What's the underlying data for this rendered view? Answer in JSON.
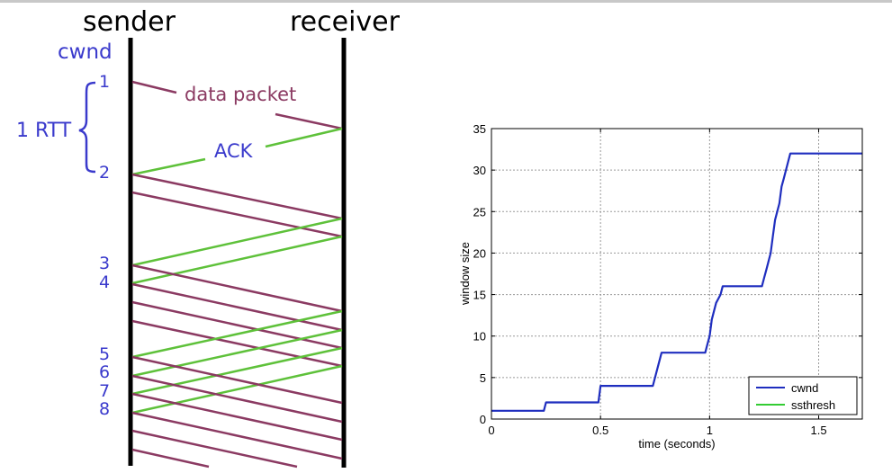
{
  "diagram": {
    "sender_label": "sender",
    "receiver_label": "receiver",
    "cwnd_label": "cwnd",
    "rtt_label": "1 RTT",
    "data_packet_label": "data packet",
    "ack_label": "ACK",
    "window_numbers": [
      "1",
      "2",
      "3",
      "4",
      "5",
      "6",
      "7",
      "8"
    ],
    "colors": {
      "data": "#8b3a62",
      "ack": "#5ec13a",
      "labels": "#3a3acc",
      "lines": "#000000"
    }
  },
  "chart_data": {
    "type": "line",
    "title": "",
    "xlabel": "time (seconds)",
    "ylabel": "window size",
    "xlim": [
      0,
      1.7
    ],
    "ylim": [
      0,
      35
    ],
    "xticks": [
      0,
      0.5,
      1,
      1.5
    ],
    "xtick_labels": [
      "0",
      "0.5",
      "1",
      "1.5"
    ],
    "yticks": [
      0,
      5,
      10,
      15,
      20,
      25,
      30,
      35
    ],
    "ytick_labels": [
      "0",
      "5",
      "10",
      "15",
      "20",
      "25",
      "30",
      "35"
    ],
    "grid": true,
    "legend": "bottom-right",
    "series": [
      {
        "name": "cwnd",
        "color": "#1f2ebf",
        "x": [
          0,
          0.24,
          0.25,
          0.49,
          0.5,
          0.74,
          0.78,
          0.98,
          0.99,
          1.0,
          1.01,
          1.03,
          1.05,
          1.06,
          1.24,
          1.25,
          1.26,
          1.27,
          1.28,
          1.29,
          1.3,
          1.31,
          1.32,
          1.33,
          1.34,
          1.35,
          1.36,
          1.37,
          1.7
        ],
        "y": [
          1,
          1,
          2,
          2,
          4,
          4,
          8,
          8,
          9,
          10,
          12,
          14,
          15,
          16,
          16,
          17,
          18,
          19,
          20,
          22,
          24,
          25,
          26,
          28,
          29,
          30,
          31,
          32,
          32
        ]
      },
      {
        "name": "ssthresh",
        "color": "#33cc33",
        "x": [],
        "y": []
      }
    ]
  }
}
